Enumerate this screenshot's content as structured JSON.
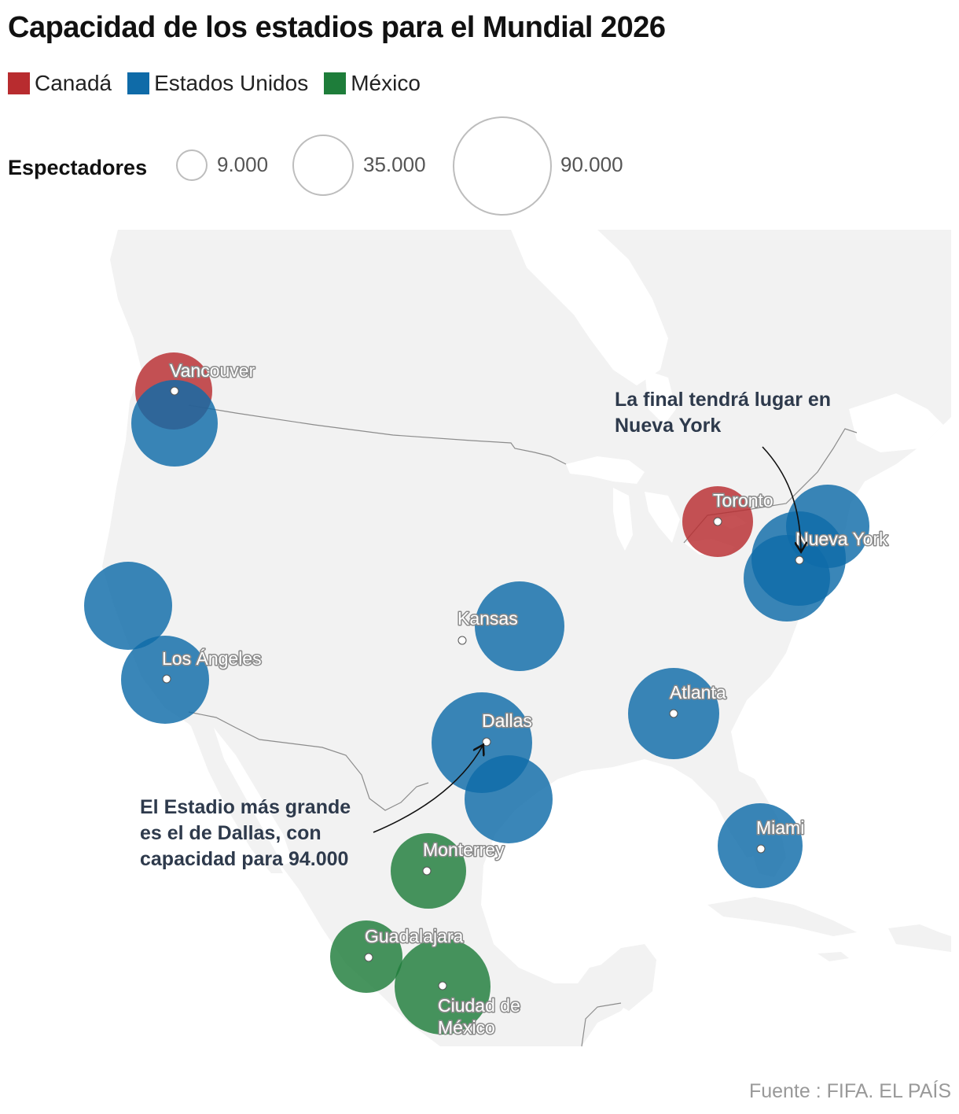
{
  "title": "Capacidad de los estadios para el Mundial 2026",
  "legend": [
    {
      "label": "Canadá",
      "color": "#b82c2f"
    },
    {
      "label": "Estados Unidos",
      "color": "#0f6ba8"
    },
    {
      "label": "México",
      "color": "#1e7d3a"
    }
  ],
  "size_legend": {
    "label": "Espectadores",
    "items": [
      {
        "value": 9000,
        "label": "9.000"
      },
      {
        "value": 35000,
        "label": "35.000"
      },
      {
        "value": 90000,
        "label": "90.000"
      }
    ]
  },
  "colors": {
    "Canada": "#b82c2f",
    "USA": "#0f6ba8",
    "Mexico": "#1e7d3a",
    "land": "#f2f2f2",
    "border": "#8c8c8c"
  },
  "cities": [
    {
      "name": "Vancouver",
      "country": "Canada"
    },
    {
      "name": "Toronto",
      "country": "Canada"
    },
    {
      "name": "Nueva York",
      "country": "USA"
    },
    {
      "name": "Kansas",
      "country": "USA"
    },
    {
      "name": "Los Ángeles",
      "country": "USA"
    },
    {
      "name": "Dallas",
      "country": "USA"
    },
    {
      "name": "Atlanta",
      "country": "USA"
    },
    {
      "name": "Miami",
      "country": "USA"
    },
    {
      "name": "Monterrey",
      "country": "Mexico"
    },
    {
      "name": "Guadalajara",
      "country": "Mexico"
    },
    {
      "name": "Ciudad de México",
      "country": "Mexico"
    }
  ],
  "annotations": {
    "final": "La final tendrá lugar en Nueva York",
    "dallas": "El Estadio más grande es el de Dallas, con capacidad para 94.000"
  },
  "source": "Fuente : FIFA. EL PAÍS"
}
